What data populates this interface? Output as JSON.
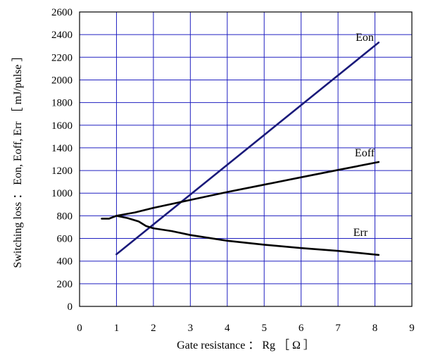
{
  "chart_data": {
    "type": "line",
    "xlabel": "Gate resistance ： Rg ［ Ω ］",
    "ylabel": "Switching loss ： Eon, Eoff, Err ［ mJ/pulse ］",
    "xlim": [
      0,
      9
    ],
    "ylim": [
      0,
      2600
    ],
    "x_ticks": [
      "0",
      "1",
      "2",
      "3",
      "4",
      "5",
      "6",
      "7",
      "8",
      "9"
    ],
    "y_ticks": [
      "0",
      "200",
      "400",
      "600",
      "800",
      "1000",
      "1200",
      "1400",
      "1600",
      "1800",
      "2000",
      "2200",
      "2400",
      "2600"
    ],
    "grid": true,
    "series": [
      {
        "name": "Eon",
        "color": "#1a1a7a",
        "x": [
          1,
          8.1
        ],
        "y": [
          460,
          2330
        ]
      },
      {
        "name": "Eoff",
        "color": "#000000",
        "x": [
          0.6,
          0.8,
          1.0,
          1.5,
          2.0,
          2.5,
          3.0,
          4.0,
          5.0,
          6.0,
          7.0,
          8.1
        ],
        "y": [
          775,
          775,
          800,
          830,
          870,
          905,
          940,
          1010,
          1075,
          1140,
          1205,
          1275
        ]
      },
      {
        "name": "Err",
        "color": "#000000",
        "x": [
          1.0,
          1.3,
          1.6,
          1.8,
          2.0,
          2.5,
          3.0,
          4.0,
          5.0,
          6.0,
          7.0,
          8.1
        ],
        "y": [
          800,
          780,
          750,
          710,
          690,
          665,
          630,
          580,
          545,
          515,
          490,
          455
        ]
      }
    ]
  }
}
